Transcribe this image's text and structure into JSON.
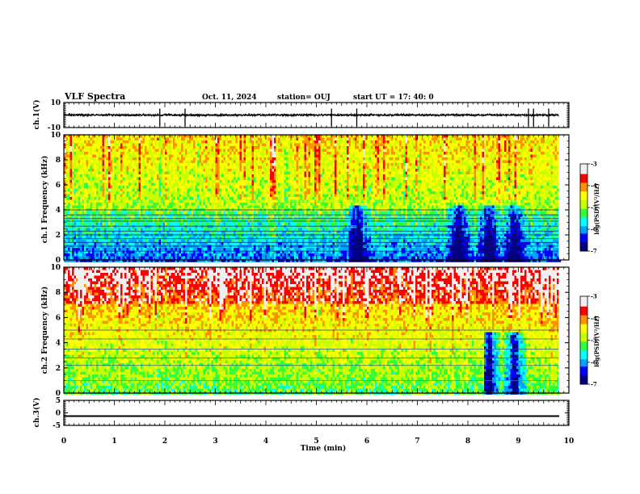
{
  "header": {
    "title": "VLF Spectra",
    "date": "Oct. 11, 2024",
    "station": "station= OUJ",
    "start": "start  UT  =   17: 40: 0"
  },
  "chart_data": [
    {
      "type": "line",
      "panel": "ch1-waveform",
      "ylabel": "ch.1(V)",
      "ylim": [
        -10,
        10
      ],
      "y_ticks": [
        "10",
        "-10"
      ],
      "xlim": [
        0,
        10
      ],
      "series": [
        {
          "x": [
            0,
            9.8
          ],
          "y": [
            0,
            0
          ],
          "spikes_min": [
            1.9,
            2.4,
            5.3,
            5.8,
            9.2,
            9.3,
            9.6
          ]
        }
      ]
    },
    {
      "type": "heatmap",
      "panel": "ch1-spectrogram",
      "ylabel": "ch.1 Frequency (kHz)",
      "ylim": [
        0,
        10
      ],
      "y_ticks": [
        "0",
        "2",
        "4",
        "6",
        "8",
        "10"
      ],
      "xlim": [
        0,
        10
      ],
      "data_end_min": 9.8,
      "colorbar": {
        "label": "log(PSD)(V²/Hz)",
        "range": [
          -7,
          -3
        ],
        "ticks": [
          "-3",
          "-4",
          "-5",
          "-6",
          "-7"
        ]
      },
      "features": {
        "horizontal_lines_khz": [
          0.7,
          1.1,
          1.4,
          1.7,
          2.0,
          2.3,
          2.7,
          3.1,
          3.3,
          3.6,
          4.0,
          4.7
        ],
        "bursts_min": [
          5.8,
          7.8,
          8.4,
          8.9
        ]
      }
    },
    {
      "type": "heatmap",
      "panel": "ch2-spectrogram",
      "ylabel": "ch.2 Frequency (kHz)",
      "ylim": [
        0,
        10
      ],
      "y_ticks": [
        "0",
        "2",
        "4",
        "6",
        "8",
        "10"
      ],
      "xlim": [
        0,
        10
      ],
      "data_end_min": 9.8,
      "colorbar": {
        "label": "log(PSD)(V²/Hz)",
        "range": [
          -7,
          -3
        ],
        "ticks": [
          "-3",
          "-4",
          "-5",
          "-6",
          "-7"
        ]
      },
      "features": {
        "horizontal_lines_khz": [
          1.0,
          2.2,
          2.8,
          3.5,
          4.3,
          5.0
        ],
        "bursts_min": [
          5.8,
          8.4,
          8.9
        ]
      }
    },
    {
      "type": "line",
      "panel": "ch3-waveform",
      "ylabel": "ch.3(V)",
      "ylim": [
        -5,
        5
      ],
      "y_ticks": [
        "5",
        "0",
        "-5"
      ],
      "xlim": [
        0,
        10
      ],
      "series": [
        {
          "x": [
            0,
            10
          ],
          "y": [
            0,
            0
          ]
        }
      ]
    }
  ],
  "x_axis": {
    "label": "Time  (min)",
    "range": [
      0,
      10
    ],
    "ticks": [
      "0",
      "1",
      "2",
      "3",
      "4",
      "5",
      "6",
      "7",
      "8",
      "9",
      "10"
    ]
  },
  "colors": {
    "colormap": [
      "#000080",
      "#0000ff",
      "#00a0ff",
      "#00ffff",
      "#30ff40",
      "#c8ff00",
      "#ffff00",
      "#ff9000",
      "#ff0000",
      "#f0f0f0"
    ]
  }
}
